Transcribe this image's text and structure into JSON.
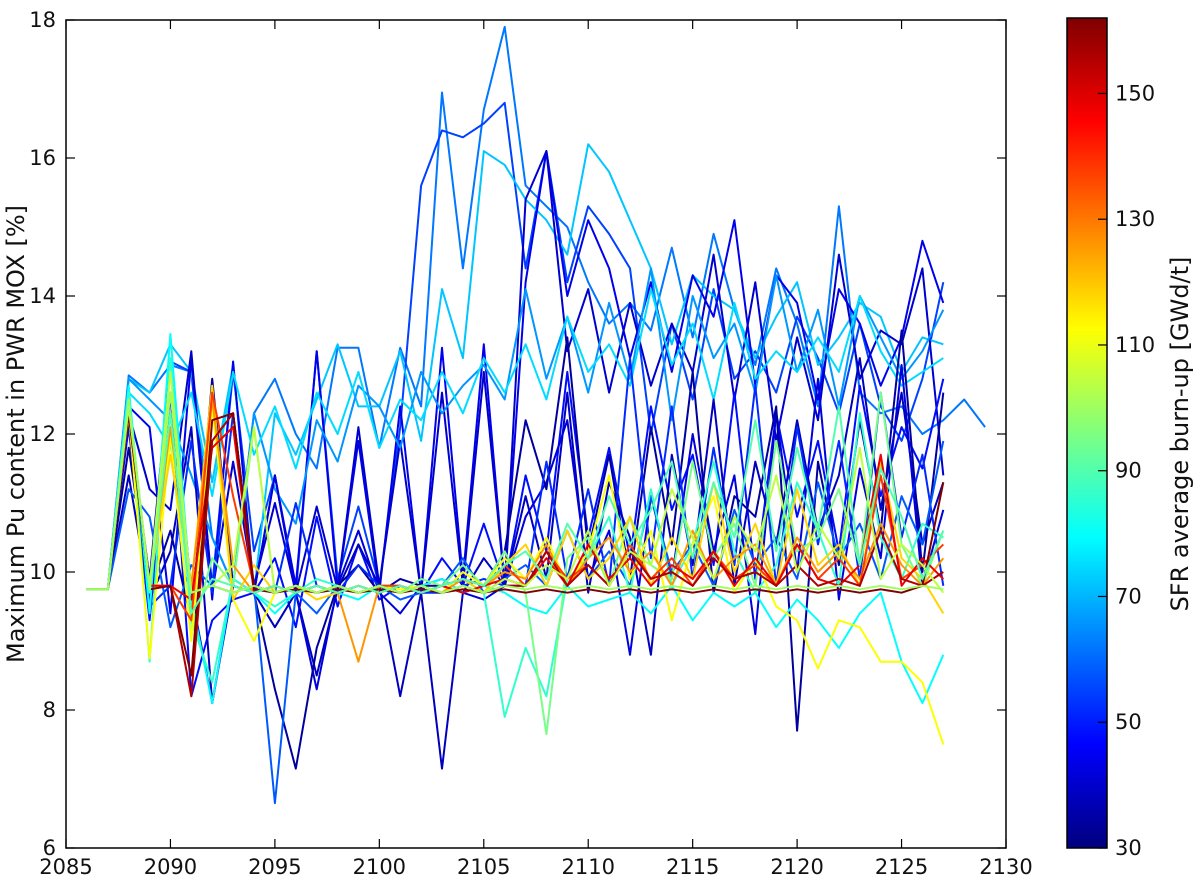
{
  "chart_data": {
    "type": "line",
    "title": "",
    "xlabel": "",
    "ylabel": "Maximum Pu content in PWR MOX [%]",
    "xlim": [
      2085,
      2130
    ],
    "ylim": [
      6,
      18
    ],
    "xticks": [
      2085,
      2090,
      2095,
      2100,
      2105,
      2110,
      2115,
      2120,
      2125,
      2130
    ],
    "yticks": [
      6,
      8,
      10,
      12,
      14,
      16,
      18
    ],
    "x_start": 2086,
    "x_step": 1,
    "grid": false,
    "colorbar": {
      "label": "SFR average burn-up [GWd/t]",
      "range": [
        30,
        162
      ],
      "ticks": [
        30,
        50,
        70,
        90,
        110,
        130,
        150
      ],
      "colormap": [
        "#00007f",
        "#0000ff",
        "#007fff",
        "#00ffff",
        "#7fff7f",
        "#ffff00",
        "#ff7f00",
        "#ff0000",
        "#7f0000"
      ]
    },
    "series": [
      {
        "burnup": 62,
        "values": [
          9.75,
          9.75,
          12.85,
          12.6,
          13.0,
          12.9,
          10.5,
          9.8,
          12.3,
          12.8,
          12.0,
          11.5,
          13.25,
          13.25,
          11.8,
          13.25,
          12.4,
          16.95,
          14.4,
          16.7,
          17.9,
          15.6,
          15.3,
          15.0,
          14.2,
          13.6,
          13.9,
          13.5,
          14.7,
          13.4,
          14.9,
          13.8,
          13.0,
          14.4,
          13.6,
          12.4,
          15.3,
          12.6,
          12.3,
          12.4,
          12.0,
          12.2,
          12.5,
          12.1
        ]
      },
      {
        "burnup": 55,
        "values": [
          9.75,
          9.75,
          12.4,
          9.5,
          13.05,
          12.9,
          9.8,
          12.9,
          10.3,
          11.4,
          9.7,
          13.2,
          9.9,
          10.95,
          9.8,
          12.1,
          15.6,
          16.4,
          16.3,
          16.5,
          16.8,
          14.4,
          16.1,
          14.2,
          15.3,
          14.9,
          14.4,
          12.0,
          13.6,
          12.5,
          14.1,
          12.8,
          13.2,
          12.6,
          13.7,
          13.1,
          12.3,
          13.6,
          12.4,
          11.9,
          12.8,
          14.2
        ]
      },
      {
        "burnup": 72,
        "values": [
          9.75,
          9.75,
          12.8,
          12.6,
          13.3,
          12.9,
          11.3,
          13.0,
          9.7,
          12.3,
          11.7,
          12.5,
          13.3,
          12.4,
          12.4,
          13.2,
          11.9,
          14.1,
          13.1,
          16.1,
          15.9,
          15.4,
          15.1,
          14.6,
          16.2,
          15.8,
          15.1,
          14.4,
          13.3,
          14.3,
          14.0,
          13.8,
          13.1,
          13.7,
          14.2,
          13.0,
          13.4,
          13.9,
          13.7,
          12.9,
          13.4,
          13.3
        ]
      },
      {
        "burnup": 44,
        "values": [
          9.75,
          9.75,
          12.4,
          12.1,
          9.4,
          13.1,
          9.6,
          13.05,
          9.7,
          11.4,
          9.8,
          13.2,
          9.75,
          11.9,
          9.7,
          12.4,
          9.7,
          13.25,
          9.9,
          13.3,
          9.8,
          14.2,
          16.1,
          14.0,
          15.1,
          14.4,
          13.1,
          14.2,
          12.9,
          14.3,
          13.7,
          15.1,
          12.7,
          14.3,
          13.9,
          12.5,
          14.1,
          13.6,
          12.7,
          13.4,
          14.8,
          13.9
        ]
      },
      {
        "burnup": 40,
        "values": [
          9.75,
          9.75,
          12.3,
          11.2,
          10.9,
          13.2,
          9.7,
          11.6,
          9.8,
          11.0,
          9.7,
          10.95,
          9.75,
          12.1,
          9.8,
          11.9,
          9.7,
          12.6,
          9.8,
          12.9,
          9.8,
          15.4,
          16.1,
          13.2,
          14.1,
          12.6,
          13.9,
          12.7,
          13.6,
          12.9,
          14.6,
          12.5,
          14.2,
          11.9,
          13.4,
          12.2,
          14.6,
          12.8,
          13.5,
          13.3,
          14.4,
          11.4
        ]
      },
      {
        "burnup": 66,
        "values": [
          9.75,
          9.75,
          12.8,
          12.5,
          12.2,
          11.4,
          10.5,
          9.8,
          12.3,
          11.2,
          10.7,
          12.2,
          11.6,
          12.7,
          12.4,
          11.8,
          12.9,
          12.3,
          12.7,
          13.0,
          12.5,
          14.1,
          12.8,
          13.7,
          12.6,
          13.9,
          12.8,
          14.4,
          12.2,
          14.0,
          13.1,
          13.6,
          12.6,
          14.3,
          12.9,
          13.8,
          12.4,
          14.0,
          13.4,
          12.8,
          13.2,
          13.8
        ]
      },
      {
        "burnup": 75,
        "values": [
          9.75,
          9.75,
          12.6,
          12.3,
          11.8,
          12.6,
          11.1,
          12.9,
          11.7,
          12.4,
          11.5,
          12.6,
          12.0,
          12.9,
          11.8,
          12.5,
          12.2,
          12.9,
          12.3,
          13.1,
          12.6,
          13.3,
          12.5,
          13.7,
          12.9,
          13.3,
          12.7,
          14.1,
          13.0,
          13.6,
          12.5,
          13.9,
          12.8,
          13.2,
          12.9,
          13.4,
          12.9,
          14.0,
          13.2,
          12.7,
          12.9,
          13.1
        ]
      },
      {
        "burnup": 48,
        "values": [
          9.75,
          9.75,
          12.1,
          9.3,
          12.6,
          8.2,
          9.3,
          9.6,
          9.7,
          10.2,
          9.2,
          10.8,
          9.5,
          10.4,
          9.6,
          9.8,
          9.7,
          10.2,
          9.8,
          10.7,
          9.8,
          11.4,
          10.3,
          12.9,
          10.5,
          11.8,
          10.2,
          12.4,
          10.9,
          11.7,
          10.1,
          12.6,
          9.9,
          12.3,
          10.8,
          11.9,
          10.3,
          12.7,
          11.1,
          12.1,
          11.5,
          12.8
        ]
      },
      {
        "burnup": 38,
        "values": [
          9.75,
          9.75,
          11.4,
          9.6,
          10.3,
          12.1,
          8.1,
          9.9,
          9.7,
          9.2,
          9.7,
          8.5,
          9.75,
          10.4,
          9.8,
          8.2,
          9.7,
          7.15,
          9.7,
          10.2,
          9.8,
          11.1,
          9.9,
          12.6,
          9.7,
          11.3,
          10.5,
          8.8,
          11.7,
          10.1,
          12.5,
          9.8,
          11.6,
          10.4,
          12.2,
          10.6,
          11.4,
          13.1,
          10.9,
          12.6,
          10.4,
          11.3
        ]
      },
      {
        "burnup": 42,
        "values": [
          9.75,
          9.75,
          12.2,
          9.9,
          13.0,
          9.7,
          8.1,
          9.8,
          9.7,
          11.4,
          9.7,
          8.3,
          9.8,
          10.6,
          9.7,
          9.4,
          9.8,
          9.9,
          9.7,
          9.6,
          9.8,
          10.8,
          11.3,
          12.2,
          9.9,
          10.6,
          8.8,
          11.1,
          9.9,
          12.0,
          10.3,
          11.4,
          9.1,
          12.3,
          10.0,
          12.8,
          9.6,
          11.5,
          10.2,
          13.0,
          9.8,
          10.9
        ]
      },
      {
        "burnup": 34,
        "values": [
          9.75,
          9.75,
          11.8,
          9.7,
          10.6,
          9.3,
          12.8,
          9.8,
          9.7,
          8.3,
          7.15,
          8.9,
          9.8,
          10.1,
          9.7,
          9.9,
          9.8,
          9.8,
          9.7,
          9.8,
          10.3,
          12.2,
          11.2,
          13.4,
          10.3,
          11.7,
          9.9,
          12.1,
          10.4,
          12.9,
          9.7,
          11.1,
          10.8,
          12.4,
          7.7,
          11.6,
          10.1,
          12.2,
          10.6,
          13.5,
          10.0,
          12.6
        ]
      },
      {
        "burnup": 52,
        "values": [
          9.75,
          9.75,
          12.3,
          9.5,
          9.8,
          11.9,
          9.7,
          12.3,
          9.8,
          9.7,
          11.0,
          9.8,
          9.7,
          10.1,
          9.8,
          9.8,
          9.7,
          9.7,
          9.8,
          9.9,
          9.8,
          9.8,
          11.6,
          9.9,
          11.2,
          9.8,
          13.1,
          10.2,
          12.4,
          9.9,
          11.8,
          10.1,
          12.7,
          9.8,
          12.1,
          10.4,
          11.9,
          9.9,
          12.6,
          10.5,
          11.7,
          9.8
        ]
      },
      {
        "burnup": 58,
        "values": [
          9.75,
          9.75,
          11.2,
          10.8,
          9.2,
          10.1,
          9.8,
          9.7,
          9.8,
          6.65,
          9.7,
          9.4,
          9.8,
          9.7,
          9.8,
          9.6,
          9.7,
          9.8,
          10.2,
          9.7,
          9.9,
          10.1,
          9.8,
          10.6,
          9.9,
          10.3,
          9.8,
          11.1,
          10.0,
          10.4,
          9.8,
          10.9,
          10.1,
          10.5,
          9.9,
          11.3,
          10.2,
          10.7,
          9.9,
          11.1,
          10.4,
          11.9
        ]
      },
      {
        "burnup": 80,
        "values": [
          9.75,
          9.75,
          12.7,
          9.4,
          13.45,
          9.6,
          8.1,
          9.9,
          9.7,
          9.4,
          9.7,
          9.8,
          9.7,
          9.6,
          9.8,
          9.7,
          9.8,
          9.9,
          9.7,
          9.8,
          9.7,
          9.5,
          9.4,
          9.8,
          9.5,
          9.6,
          9.7,
          9.4,
          9.8,
          9.3,
          9.7,
          9.5,
          9.7,
          9.2,
          9.6,
          9.3,
          8.9,
          9.4,
          9.7,
          8.7,
          8.1,
          8.8
        ]
      },
      {
        "burnup": 86,
        "values": [
          9.75,
          9.75,
          12.6,
          8.7,
          13.1,
          9.3,
          8.4,
          9.9,
          9.7,
          9.5,
          9.7,
          9.9,
          9.8,
          9.7,
          9.8,
          9.8,
          9.7,
          9.8,
          9.9,
          9.7,
          7.9,
          8.9,
          8.2,
          9.9,
          10.2,
          10.8,
          9.7,
          11.2,
          9.8,
          10.4,
          11.6,
          10.3,
          9.7,
          10.1,
          11.3,
          10.6,
          9.8,
          12.3,
          10.5,
          9.9,
          10.7,
          10.5
        ]
      },
      {
        "burnup": 95,
        "values": [
          9.75,
          9.75,
          12.5,
          9.8,
          11.9,
          9.1,
          10.2,
          9.8,
          12.1,
          9.7,
          9.8,
          9.7,
          9.8,
          9.7,
          9.8,
          9.7,
          9.9,
          9.8,
          10.1,
          9.8,
          10.3,
          9.7,
          7.65,
          10.2,
          10.5,
          9.8,
          10.8,
          10.1,
          9.9,
          11.6,
          10.2,
          10.7,
          9.8,
          11.9,
          10.3,
          10.5,
          11.2,
          10.1,
          12.6,
          10.4,
          9.8,
          10.6
        ]
      },
      {
        "burnup": 112,
        "values": [
          9.75,
          9.75,
          12.3,
          8.75,
          12.0,
          9.0,
          12.4,
          9.6,
          9.0,
          9.7,
          9.8,
          9.7,
          9.8,
          9.7,
          9.8,
          9.75,
          9.8,
          9.7,
          10.0,
          9.8,
          10.2,
          9.9,
          10.5,
          9.8,
          10.3,
          11.4,
          9.9,
          10.6,
          9.3,
          10.4,
          11.1,
          9.7,
          10.2,
          9.5,
          9.3,
          8.6,
          9.3,
          9.2,
          8.7,
          8.7,
          8.4,
          7.5
        ]
      },
      {
        "burnup": 118,
        "values": [
          9.75,
          9.75,
          12.4,
          9.8,
          11.7,
          9.8,
          12.7,
          9.6,
          10.1,
          9.7,
          9.8,
          9.6,
          9.7,
          9.8,
          9.7,
          9.8,
          9.7,
          9.8,
          9.9,
          9.7,
          10.1,
          10.4,
          9.8,
          10.6,
          9.9,
          10.2,
          10.8,
          9.8,
          10.5,
          9.9,
          11.3,
          10.0,
          10.7,
          9.8,
          11.2,
          10.1,
          10.4,
          9.8,
          11.6,
          10.2,
          9.9,
          9.4
        ]
      },
      {
        "burnup": 126,
        "values": [
          9.75,
          9.75,
          12.4,
          9.8,
          12.1,
          9.8,
          12.5,
          10.1,
          9.7,
          9.8,
          9.7,
          9.8,
          9.7,
          8.7,
          9.8,
          9.7,
          9.8,
          9.7,
          9.9,
          9.8,
          10.0,
          9.9,
          10.4,
          9.8,
          10.2,
          10.5,
          10.0,
          10.3,
          9.8,
          10.6,
          9.9,
          10.2,
          10.4,
          9.8,
          10.5,
          10.0,
          10.3,
          9.9,
          10.7,
          10.1,
          9.8,
          10.2
        ]
      },
      {
        "burnup": 138,
        "values": [
          9.75,
          9.75,
          12.4,
          9.8,
          9.8,
          9.3,
          12.6,
          11.1,
          9.8,
          9.7,
          9.8,
          9.7,
          9.8,
          9.7,
          9.8,
          9.8,
          9.7,
          9.8,
          9.9,
          9.8,
          10.1,
          9.8,
          10.3,
          9.9,
          10.1,
          9.8,
          10.4,
          9.9,
          10.2,
          9.8,
          10.3,
          9.9,
          10.1,
          9.8,
          10.4,
          9.9,
          10.2,
          9.8,
          11.4,
          9.9,
          10.1,
          10.4
        ]
      },
      {
        "burnup": 148,
        "values": [
          9.75,
          9.75,
          12.35,
          9.8,
          9.8,
          9.6,
          11.8,
          12.1,
          9.7,
          9.8,
          9.7,
          9.8,
          9.7,
          9.8,
          9.7,
          9.8,
          9.7,
          9.8,
          9.7,
          9.8,
          9.9,
          9.8,
          10.2,
          9.8,
          10.4,
          9.9,
          10.2,
          9.8,
          10.1,
          9.9,
          10.3,
          9.8,
          10.2,
          9.8,
          10.4,
          9.9,
          9.8,
          10.1,
          11.7,
          9.8,
          10.2,
          9.9
        ]
      },
      {
        "burnup": 156,
        "values": [
          9.75,
          9.75,
          12.3,
          9.75,
          9.8,
          8.2,
          11.9,
          12.3,
          9.8,
          9.7,
          9.8,
          9.7,
          9.8,
          9.7,
          9.8,
          9.7,
          9.8,
          9.7,
          9.8,
          9.7,
          9.8,
          9.8,
          10.3,
          9.8,
          10.1,
          9.8,
          10.3,
          9.9,
          10.0,
          9.8,
          10.2,
          9.9,
          10.0,
          9.8,
          10.1,
          9.8,
          9.9,
          9.8,
          10.6,
          9.9,
          9.8,
          10.0
        ]
      },
      {
        "burnup": 162,
        "values": [
          9.75,
          9.75,
          12.3,
          9.75,
          9.8,
          8.5,
          12.2,
          12.3,
          9.75,
          9.7,
          9.75,
          9.7,
          9.75,
          9.7,
          9.75,
          9.7,
          9.75,
          9.7,
          9.75,
          9.7,
          9.75,
          9.7,
          9.75,
          9.7,
          9.75,
          9.7,
          9.75,
          9.7,
          9.75,
          9.7,
          9.75,
          9.7,
          9.75,
          9.7,
          9.75,
          9.7,
          9.75,
          9.7,
          9.75,
          9.7,
          9.8,
          11.3
        ]
      },
      {
        "burnup": 104,
        "values": [
          9.75,
          9.75,
          12.4,
          9.8,
          12.9,
          9.7,
          9.8,
          10.1,
          12.1,
          9.7,
          9.8,
          9.7,
          9.8,
          9.7,
          9.8,
          9.7,
          9.8,
          9.7,
          9.8,
          9.7,
          9.9,
          9.8,
          10.1,
          9.9,
          10.6,
          9.8,
          10.3,
          10.1,
          11.2,
          10.5,
          9.9,
          10.8,
          10.3,
          11.4,
          10.0,
          10.7,
          10.2,
          11.8,
          9.9,
          10.4,
          10.1,
          9.7
        ]
      },
      {
        "burnup": 90,
        "values": [
          9.75,
          9.75,
          12.5,
          9.7,
          12.3,
          9.4,
          9.9,
          9.8,
          9.7,
          9.8,
          9.7,
          9.8,
          9.7,
          9.8,
          9.7,
          9.8,
          9.7,
          9.8,
          9.9,
          9.8,
          10.1,
          10.3,
          9.9,
          10.7,
          10.2,
          11.1,
          10.4,
          10.9,
          11.6,
          10.2,
          11.3,
          10.5,
          12.2,
          10.3,
          11.8,
          10.6,
          12.4,
          10.1,
          11.5,
          10.8,
          9.9,
          10.6
        ]
      },
      {
        "burnup": 100,
        "values": [
          9.75,
          9.75,
          12.5,
          9.75,
          12.6,
          9.7,
          9.8,
          9.7,
          9.8,
          9.7,
          9.8,
          9.7,
          9.8,
          9.7,
          9.8,
          9.7,
          9.8,
          9.7,
          9.8,
          9.7,
          9.8,
          9.75,
          9.8,
          9.75,
          9.8,
          9.75,
          9.8,
          9.75,
          9.8,
          9.75,
          9.8,
          9.75,
          9.8,
          9.75,
          9.8,
          9.75,
          9.8,
          9.75,
          9.8,
          9.75,
          9.8,
          9.75
        ]
      }
    ]
  }
}
